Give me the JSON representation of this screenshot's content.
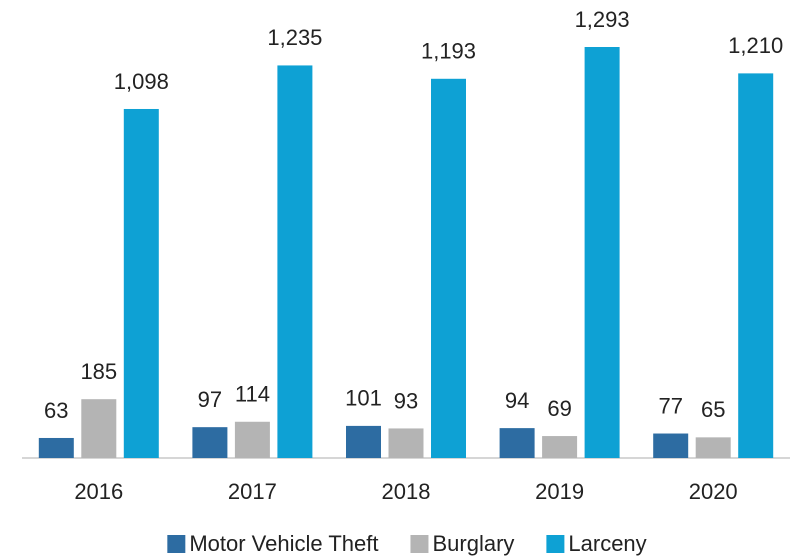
{
  "chart_data": {
    "type": "bar",
    "categories": [
      "2016",
      "2017",
      "2018",
      "2019",
      "2020"
    ],
    "series": [
      {
        "name": "Motor Vehicle Theft",
        "color": "#2d6ca2",
        "values": [
          63,
          97,
          101,
          94,
          77
        ]
      },
      {
        "name": "Burglary",
        "color": "#b4b4b4",
        "values": [
          185,
          114,
          93,
          69,
          65
        ]
      },
      {
        "name": "Larceny",
        "color": "#0ea1d4",
        "values": [
          1098,
          1235,
          1193,
          1293,
          1210
        ],
        "value_labels": [
          "1,098",
          "1,235",
          "1,193",
          "1,293",
          "1,210"
        ]
      }
    ],
    "legend": "bottom"
  }
}
